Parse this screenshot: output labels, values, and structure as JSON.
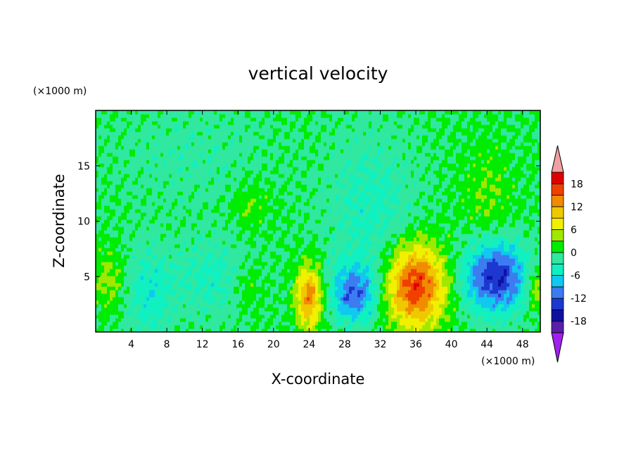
{
  "chart_data": {
    "type": "heatmap",
    "title": "vertical velocity",
    "xlabel": "X-coordinate",
    "ylabel": "Z-coordinate",
    "x_units": "(×1000 m)",
    "y_units": "(×1000 m)",
    "xlim": [
      0,
      50
    ],
    "ylim": [
      0,
      20
    ],
    "x_ticks": [
      4,
      8,
      12,
      16,
      20,
      24,
      28,
      32,
      36,
      40,
      44,
      48
    ],
    "y_ticks": [
      5,
      10,
      15
    ],
    "colorbar": {
      "levels": [
        -21,
        -18,
        -15,
        -12,
        -9,
        -6,
        -3,
        0,
        3,
        6,
        9,
        12,
        15,
        18,
        21
      ],
      "tick_labels": [
        "-18",
        "-12",
        "-6",
        "0",
        "6",
        "12",
        "18"
      ],
      "tick_values": [
        -18,
        -12,
        -6,
        0,
        6,
        12,
        18
      ],
      "colors": [
        "#a020f0",
        "#5a1ea8",
        "#1010a0",
        "#1c38d0",
        "#3c7cf0",
        "#10c8f0",
        "#10f0c0",
        "#30e8a0",
        "#00ec00",
        "#a0e800",
        "#f0f000",
        "#f0c800",
        "#f08c00",
        "#f04000",
        "#e00000",
        "#f0a0a0"
      ],
      "extend": "both"
    },
    "features": [
      {
        "x": 24,
        "z": 3.2,
        "peak": 14,
        "sx": 1.0,
        "sz": 2.0
      },
      {
        "x": 36,
        "z": 4.2,
        "peak": 18,
        "sx": 2.3,
        "sz": 2.6
      },
      {
        "x": 29,
        "z": 3.5,
        "peak": -11,
        "sx": 1.8,
        "sz": 1.8
      },
      {
        "x": 45,
        "z": 5.0,
        "peak": -15,
        "sx": 2.5,
        "sz": 2.2
      },
      {
        "x": 1.5,
        "z": 4.8,
        "peak": 4,
        "sx": 1.2,
        "sz": 2.0
      },
      {
        "x": 6,
        "z": 3.5,
        "peak": -5,
        "sx": 1.8,
        "sz": 3.0
      },
      {
        "x": 13,
        "z": 5.0,
        "peak": -4,
        "sx": 3.0,
        "sz": 2.5
      },
      {
        "x": 17,
        "z": 4.0,
        "peak": 3,
        "sx": 1.2,
        "sz": 1.5
      },
      {
        "x": 31,
        "z": 11.0,
        "peak": -4,
        "sx": 3.5,
        "sz": 5.0
      },
      {
        "x": 11,
        "z": 16.0,
        "peak": -2,
        "sx": 6.0,
        "sz": 3.0
      },
      {
        "x": 44,
        "z": 12.5,
        "peak": 3,
        "sx": 2.0,
        "sz": 3.0
      },
      {
        "x": 49.5,
        "z": 4.0,
        "peak": 6,
        "sx": 0.8,
        "sz": 1.5
      },
      {
        "x": 17.5,
        "z": 11.5,
        "peak": 3,
        "sx": 1.5,
        "sz": 1.5
      }
    ]
  }
}
